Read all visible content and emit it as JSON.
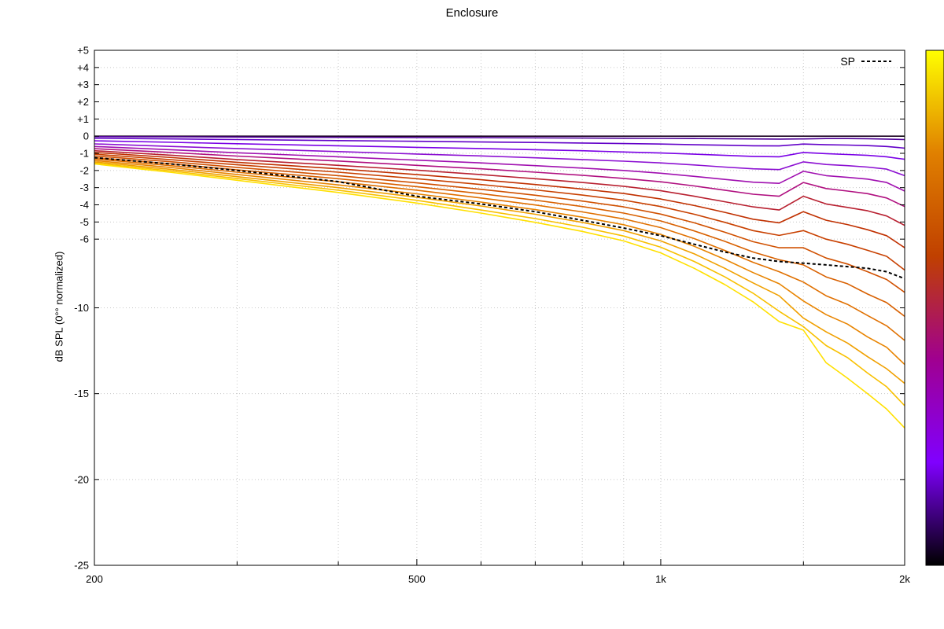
{
  "chart_data": {
    "type": "line",
    "title": "Enclosure",
    "ylabel": "dB SPL (0°° normalized)",
    "xlabel": "",
    "x_scale": "log",
    "xlim": [
      200,
      2000
    ],
    "ylim": [
      -25,
      5
    ],
    "x_ticks": [
      {
        "value": 200,
        "label": "200"
      },
      {
        "value": 500,
        "label": "500"
      },
      {
        "value": 1000,
        "label": "1k"
      },
      {
        "value": 2000,
        "label": "2k"
      }
    ],
    "x_minor_gridlines": [
      300,
      400,
      600,
      700,
      800,
      900,
      1500
    ],
    "y_ticks": [
      {
        "value": 5,
        "label": "+5"
      },
      {
        "value": 4,
        "label": "+4"
      },
      {
        "value": 3,
        "label": "+3"
      },
      {
        "value": 2,
        "label": "+2"
      },
      {
        "value": 1,
        "label": "+1"
      },
      {
        "value": 0,
        "label": "0"
      },
      {
        "value": -1,
        "label": "-1"
      },
      {
        "value": -2,
        "label": "-2"
      },
      {
        "value": -3,
        "label": "-3"
      },
      {
        "value": -4,
        "label": "-4"
      },
      {
        "value": -5,
        "label": "-5"
      },
      {
        "value": -6,
        "label": "-6"
      },
      {
        "value": -10,
        "label": "-10"
      },
      {
        "value": -15,
        "label": "-15"
      },
      {
        "value": -20,
        "label": "-20"
      },
      {
        "value": -25,
        "label": "-25"
      }
    ],
    "grid": true,
    "legend": {
      "position": "top-right",
      "entries": [
        {
          "name": "SP",
          "style": "dashed",
          "color": "#000000"
        }
      ]
    },
    "colorbar": {
      "position": "right",
      "colors": [
        "#000000",
        "#8000ff",
        "#a00090",
        "#c04000",
        "#e08000",
        "#ffff00"
      ]
    },
    "x": [
      200,
      250,
      300,
      400,
      500,
      600,
      700,
      800,
      900,
      1000,
      1100,
      1200,
      1300,
      1400,
      1500,
      1600,
      1700,
      1800,
      1900,
      2000
    ],
    "series": [
      {
        "color": "#1a0020",
        "values": [
          0,
          0,
          0,
          0,
          0,
          0,
          0,
          0,
          0,
          0,
          0,
          0,
          0,
          0,
          0,
          0,
          0,
          0,
          0,
          0
        ]
      },
      {
        "color": "#50009a",
        "values": [
          -0.03,
          -0.04,
          -0.05,
          -0.07,
          -0.08,
          -0.09,
          -0.1,
          -0.11,
          -0.12,
          -0.13,
          -0.14,
          -0.15,
          -0.16,
          -0.17,
          -0.16,
          -0.14,
          -0.14,
          -0.15,
          -0.17,
          -0.2
        ]
      },
      {
        "color": "#6200c8",
        "values": [
          -0.12,
          -0.16,
          -0.2,
          -0.26,
          -0.3,
          -0.34,
          -0.37,
          -0.4,
          -0.43,
          -0.46,
          -0.5,
          -0.53,
          -0.56,
          -0.57,
          -0.46,
          -0.5,
          -0.52,
          -0.55,
          -0.6,
          -0.7
        ]
      },
      {
        "color": "#7a00e6",
        "values": [
          -0.27,
          -0.36,
          -0.44,
          -0.56,
          -0.65,
          -0.72,
          -0.79,
          -0.85,
          -0.92,
          -0.98,
          -1.05,
          -1.12,
          -1.18,
          -1.2,
          -0.95,
          -1.02,
          -1.07,
          -1.12,
          -1.2,
          -1.35
        ]
      },
      {
        "color": "#8c10d2",
        "values": [
          -0.45,
          -0.6,
          -0.72,
          -0.9,
          -1.04,
          -1.15,
          -1.26,
          -1.36,
          -1.46,
          -1.56,
          -1.68,
          -1.8,
          -1.9,
          -1.95,
          -1.5,
          -1.65,
          -1.72,
          -1.8,
          -1.92,
          -2.3
        ]
      },
      {
        "color": "#a010b0",
        "values": [
          -0.6,
          -0.8,
          -0.97,
          -1.2,
          -1.4,
          -1.56,
          -1.72,
          -1.86,
          -2.0,
          -2.16,
          -2.34,
          -2.52,
          -2.68,
          -2.75,
          -2.05,
          -2.3,
          -2.4,
          -2.5,
          -2.7,
          -3.2
        ]
      },
      {
        "color": "#b01080",
        "values": [
          -0.73,
          -0.96,
          -1.16,
          -1.45,
          -1.7,
          -1.9,
          -2.1,
          -2.28,
          -2.46,
          -2.66,
          -2.9,
          -3.15,
          -3.38,
          -3.5,
          -2.7,
          -3.05,
          -3.2,
          -3.35,
          -3.6,
          -4.1
        ]
      },
      {
        "color": "#b82030",
        "values": [
          -0.85,
          -1.12,
          -1.36,
          -1.7,
          -1.98,
          -2.24,
          -2.48,
          -2.7,
          -2.92,
          -3.18,
          -3.5,
          -3.82,
          -4.12,
          -4.3,
          -3.5,
          -3.95,
          -4.15,
          -4.35,
          -4.65,
          -5.2
        ]
      },
      {
        "color": "#c03000",
        "values": [
          -0.95,
          -1.25,
          -1.52,
          -1.9,
          -2.24,
          -2.54,
          -2.82,
          -3.08,
          -3.34,
          -3.66,
          -4.04,
          -4.44,
          -4.84,
          -5.05,
          -4.4,
          -4.9,
          -5.15,
          -5.45,
          -5.8,
          -6.5
        ]
      },
      {
        "color": "#c84000",
        "values": [
          -1.05,
          -1.38,
          -1.67,
          -2.1,
          -2.48,
          -2.82,
          -3.13,
          -3.43,
          -3.73,
          -4.1,
          -4.55,
          -5.02,
          -5.5,
          -5.78,
          -5.5,
          -6.0,
          -6.3,
          -6.65,
          -7.0,
          -7.8
        ]
      },
      {
        "color": "#d05000",
        "values": [
          -1.15,
          -1.5,
          -1.82,
          -2.3,
          -2.72,
          -3.1,
          -3.44,
          -3.78,
          -4.12,
          -4.54,
          -5.05,
          -5.6,
          -6.15,
          -6.5,
          -6.5,
          -7.1,
          -7.45,
          -7.9,
          -8.35,
          -9.1
        ]
      },
      {
        "color": "#d86000",
        "values": [
          -1.25,
          -1.62,
          -1.96,
          -2.48,
          -2.94,
          -3.35,
          -3.73,
          -4.1,
          -4.48,
          -4.94,
          -5.52,
          -6.13,
          -6.75,
          -7.2,
          -7.5,
          -8.2,
          -8.6,
          -9.2,
          -9.7,
          -10.5
        ]
      },
      {
        "color": "#e07000",
        "values": [
          -1.33,
          -1.73,
          -2.1,
          -2.66,
          -3.15,
          -3.6,
          -4.01,
          -4.41,
          -4.82,
          -5.33,
          -5.97,
          -6.66,
          -7.35,
          -7.9,
          -8.5,
          -9.3,
          -9.8,
          -10.45,
          -11.05,
          -11.9
        ]
      },
      {
        "color": "#e88400",
        "values": [
          -1.42,
          -1.84,
          -2.23,
          -2.84,
          -3.36,
          -3.84,
          -4.28,
          -4.72,
          -5.16,
          -5.72,
          -6.42,
          -7.18,
          -7.95,
          -8.6,
          -9.6,
          -10.4,
          -10.95,
          -11.7,
          -12.3,
          -13.3
        ]
      },
      {
        "color": "#f0a000",
        "values": [
          -1.5,
          -1.95,
          -2.36,
          -3.0,
          -3.56,
          -4.07,
          -4.55,
          -5.02,
          -5.5,
          -6.1,
          -6.86,
          -7.7,
          -8.55,
          -9.3,
          -10.6,
          -11.4,
          -12.05,
          -12.85,
          -13.55,
          -14.4
        ]
      },
      {
        "color": "#f8c000",
        "values": [
          -1.57,
          -2.04,
          -2.47,
          -3.15,
          -3.74,
          -4.3,
          -4.8,
          -5.3,
          -5.82,
          -6.47,
          -7.3,
          -8.2,
          -9.15,
          -10.2,
          -11.1,
          -12.2,
          -12.9,
          -13.8,
          -14.6,
          -15.7
        ]
      },
      {
        "color": "#ffe000",
        "values": [
          -1.62,
          -2.12,
          -2.57,
          -3.28,
          -3.9,
          -4.48,
          -5.02,
          -5.55,
          -6.1,
          -6.8,
          -7.7,
          -8.65,
          -9.65,
          -10.8,
          -11.3,
          -13.2,
          -14.1,
          -15.0,
          -15.9,
          -17.0
        ]
      }
    ],
    "sp_series": {
      "name": "SP",
      "color": "#000000",
      "values": [
        -1.25,
        -1.63,
        -2.0,
        -2.65,
        -3.5,
        -3.95,
        -4.4,
        -4.9,
        -5.35,
        -5.8,
        -6.3,
        -6.75,
        -7.1,
        -7.3,
        -7.4,
        -7.5,
        -7.6,
        -7.7,
        -7.9,
        -8.3
      ]
    }
  }
}
